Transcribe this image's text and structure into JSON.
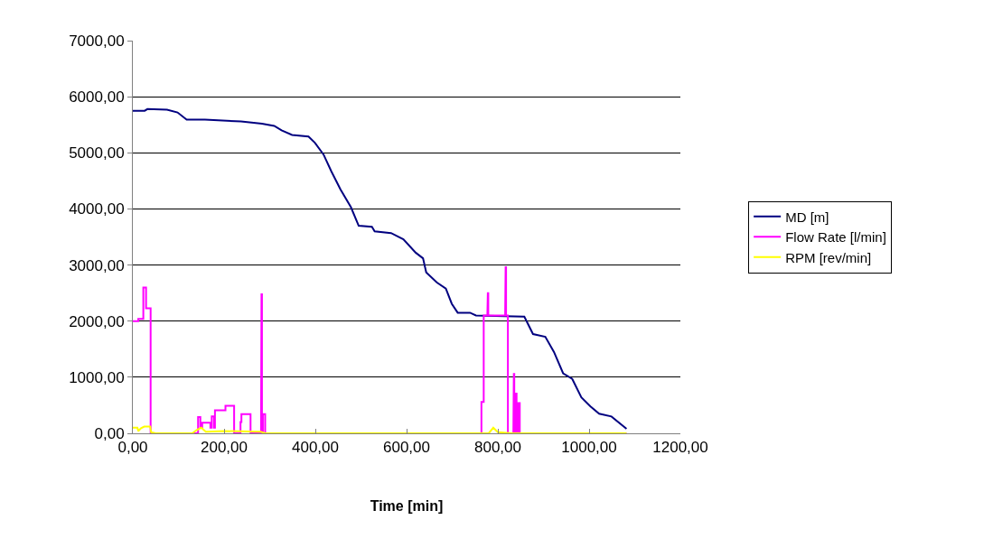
{
  "chart_data": {
    "type": "line",
    "xlabel": "Time [min]",
    "xlim": [
      0,
      1200
    ],
    "xticks": [
      {
        "value": 0,
        "label": "0,00"
      },
      {
        "value": 200,
        "label": "200,00"
      },
      {
        "value": 400,
        "label": "400,00"
      },
      {
        "value": 600,
        "label": "600,00"
      },
      {
        "value": 800,
        "label": "800,00"
      },
      {
        "value": 1000,
        "label": "1000,00"
      },
      {
        "value": 1200,
        "label": "1200,00"
      }
    ],
    "ylim": [
      0,
      7000
    ],
    "yticks": [
      {
        "value": 0,
        "label": "0,00"
      },
      {
        "value": 1000,
        "label": "1000,00"
      },
      {
        "value": 2000,
        "label": "2000,00"
      },
      {
        "value": 3000,
        "label": "3000,00"
      },
      {
        "value": 4000,
        "label": "4000,00"
      },
      {
        "value": 5000,
        "label": "5000,00"
      },
      {
        "value": 6000,
        "label": "6000,00"
      },
      {
        "value": 7000,
        "label": "7000,00"
      }
    ],
    "grid": "y",
    "legend": "right",
    "marker": "none",
    "line_style": "solid",
    "series": [
      {
        "name": "MD [m]",
        "color": "#000080",
        "x": [
          0,
          26,
          32,
          75,
          98,
          118,
          158,
          237,
          283,
          310,
          326,
          349,
          385,
          399,
          418,
          435,
          455,
          478,
          495,
          524,
          530,
          566,
          593,
          620,
          636,
          643,
          666,
          686,
          699,
          712,
          739,
          752,
          858,
          877,
          904,
          923,
          943,
          963,
          983,
          1003,
          1022,
          1049,
          1082
        ],
        "values": [
          5750,
          5750,
          5780,
          5770,
          5720,
          5590,
          5590,
          5560,
          5520,
          5480,
          5400,
          5320,
          5290,
          5180,
          4970,
          4670,
          4350,
          4030,
          3700,
          3680,
          3600,
          3570,
          3460,
          3220,
          3120,
          2870,
          2690,
          2580,
          2310,
          2150,
          2150,
          2100,
          2080,
          1770,
          1720,
          1450,
          1070,
          970,
          640,
          480,
          350,
          300,
          80
        ]
      },
      {
        "name": "Flow Rate [l/min]",
        "color": "#ff00ff",
        "x": [
          0,
          12,
          12,
          22,
          23,
          23,
          29,
          29,
          39,
          39,
          143,
          143,
          148,
          148,
          152,
          152,
          170,
          170,
          173,
          173,
          178,
          178,
          180,
          180,
          200,
          200,
          203,
          203,
          222,
          222,
          236,
          236,
          238,
          238,
          258,
          258,
          281,
          282,
          283,
          283,
          285,
          285,
          290,
          290,
          764,
          764,
          769,
          769,
          777,
          778,
          779,
          779,
          816,
          817,
          818,
          818,
          822,
          822,
          834,
          835,
          836,
          836,
          838,
          838,
          841,
          841,
          845,
          845,
          848,
          848,
          1082
        ],
        "values": [
          2000,
          2000,
          2040,
          2040,
          2040,
          2600,
          2600,
          2230,
          2230,
          0,
          0,
          290,
          290,
          100,
          100,
          190,
          190,
          100,
          100,
          300,
          300,
          100,
          100,
          410,
          410,
          410,
          410,
          490,
          490,
          0,
          0,
          200,
          200,
          340,
          340,
          0,
          0,
          2480,
          2480,
          0,
          0,
          340,
          340,
          0,
          0,
          560,
          560,
          2100,
          2100,
          2500,
          2500,
          2100,
          2100,
          2960,
          2960,
          2100,
          2100,
          0,
          0,
          1060,
          1060,
          0,
          0,
          710,
          710,
          0,
          0,
          540,
          540,
          0,
          0
        ]
      },
      {
        "name": "RPM [rev/min]",
        "color": "#ffff00",
        "x": [
          0,
          10,
          12,
          18,
          25,
          38,
          40,
          50,
          130,
          140,
          150,
          160,
          200,
          280,
          290,
          780,
          790,
          800,
          830,
          1082
        ],
        "values": [
          100,
          100,
          40,
          90,
          120,
          120,
          20,
          0,
          0,
          60,
          100,
          30,
          40,
          30,
          0,
          0,
          100,
          20,
          0,
          0
        ]
      }
    ]
  }
}
